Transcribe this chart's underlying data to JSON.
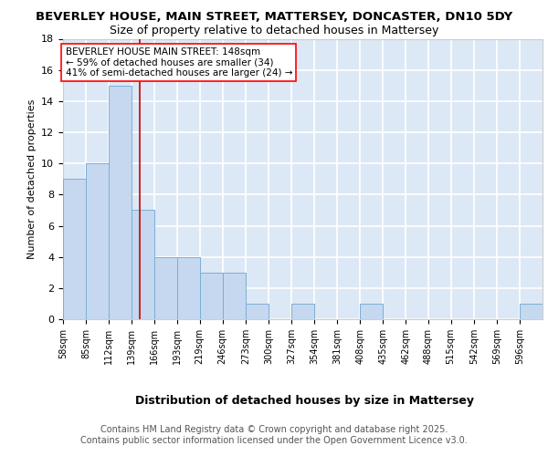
{
  "title1": "BEVERLEY HOUSE, MAIN STREET, MATTERSEY, DONCASTER, DN10 5DY",
  "title2": "Size of property relative to detached houses in Mattersey",
  "xlabel": "Distribution of detached houses by size in Mattersey",
  "ylabel": "Number of detached properties",
  "bin_edges": [
    58,
    85,
    112,
    139,
    166,
    193,
    219,
    246,
    273,
    300,
    327,
    354,
    381,
    408,
    435,
    462,
    488,
    515,
    542,
    569,
    596,
    623
  ],
  "bar_heights": [
    9,
    10,
    15,
    7,
    4,
    4,
    3,
    3,
    1,
    0,
    1,
    0,
    0,
    1,
    0,
    0,
    0,
    0,
    0,
    0,
    1
  ],
  "tick_labels": [
    "58sqm",
    "85sqm",
    "112sqm",
    "139sqm",
    "166sqm",
    "193sqm",
    "219sqm",
    "246sqm",
    "273sqm",
    "300sqm",
    "327sqm",
    "354sqm",
    "381sqm",
    "408sqm",
    "435sqm",
    "462sqm",
    "488sqm",
    "515sqm",
    "542sqm",
    "569sqm",
    "596sqm"
  ],
  "bar_color": "#c5d8ef",
  "bar_edge_color": "#7bafd4",
  "property_size": 148,
  "vline_color": "#cc0000",
  "annotation_text": "BEVERLEY HOUSE MAIN STREET: 148sqm\n← 59% of detached houses are smaller (34)\n41% of semi-detached houses are larger (24) →",
  "ylim": [
    0,
    18
  ],
  "yticks": [
    0,
    2,
    4,
    6,
    8,
    10,
    12,
    14,
    16,
    18
  ],
  "fig_bg_color": "#ffffff",
  "axes_bg_color": "#dce8f5",
  "grid_color": "#ffffff",
  "footer_text": "Contains HM Land Registry data © Crown copyright and database right 2025.\nContains public sector information licensed under the Open Government Licence v3.0.",
  "title1_fontsize": 9.5,
  "title2_fontsize": 9,
  "annotation_fontsize": 7.5,
  "footer_fontsize": 7,
  "xlabel_fontsize": 9,
  "ylabel_fontsize": 8
}
